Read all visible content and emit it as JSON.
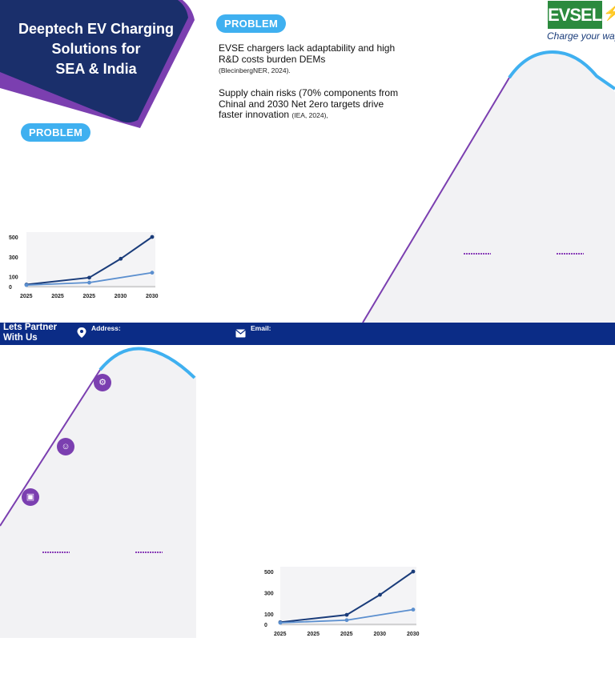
{
  "banner": {
    "title": "Deeptech EV Charging\nSolutions for\nSEA & India"
  },
  "badges": {
    "problem_top": "PROBLEM",
    "problem_left": "PROBLEM"
  },
  "problem": {
    "p1": "EVSE chargers lack adaptability and high R&D costs burden DEMs",
    "p1_cite": "(BlecinbergNER, 2024).",
    "p2": "Supply chain risks (70% components from Chinal and 2030 Net 2ero targets drive faster innovation",
    "p2_cite": "(IEA, 2024),"
  },
  "logo": {
    "name": "EVSELab",
    "tagline": "Charge your ways"
  },
  "contact": {
    "title": "Lets Partner\nWith Us",
    "address_label": "Address:",
    "email_label": "Email:"
  },
  "icons": {
    "address": "location-pin-icon",
    "email": "mail-icon",
    "step1": "hand-gear-icon",
    "step2": "team-icon",
    "step3": "presentation-icon",
    "bolt": "lightning-bolt-icon"
  },
  "colors": {
    "banner": "#1a2f6b",
    "accent_purple": "#7b3fb0",
    "pill": "#3fb0f0",
    "contact_bar": "#0b2c86",
    "series_dark": "#1a3c7a",
    "series_light": "#5b8fcf"
  },
  "chart_data": [
    {
      "type": "line",
      "categories": [
        "2025",
        "2025",
        "2025",
        "2030",
        "2030"
      ],
      "x_positions": [
        0,
        1,
        2,
        3,
        4
      ],
      "series": [
        {
          "values": [
            20,
            null,
            90,
            280,
            500
          ]
        },
        {
          "values": [
            15,
            null,
            40,
            null,
            140
          ]
        }
      ],
      "yticks": [
        "500",
        "300",
        "100",
        "0"
      ],
      "ylim": [
        0,
        500
      ],
      "grid": false
    },
    {
      "type": "line",
      "categories": [
        "2025",
        "2025",
        "2025",
        "2030",
        "2030"
      ],
      "x_positions": [
        0,
        1,
        2,
        3,
        4
      ],
      "series": [
        {
          "values": [
            20,
            null,
            90,
            280,
            500
          ]
        },
        {
          "values": [
            15,
            null,
            40,
            null,
            140
          ]
        }
      ],
      "yticks": [
        "500",
        "300",
        "100",
        "0"
      ],
      "ylim": [
        0,
        500
      ],
      "grid": false
    }
  ]
}
